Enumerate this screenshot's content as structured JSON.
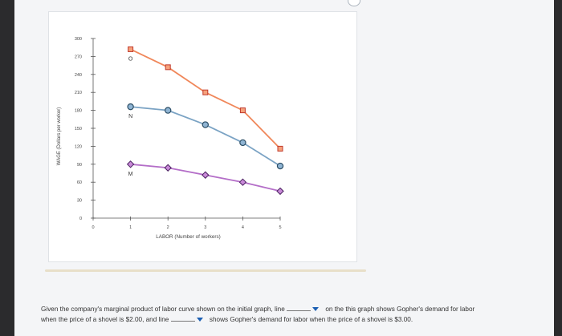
{
  "chart_data": {
    "type": "line",
    "ylabel": "WAGE (Dollars per worker)",
    "xlabel": "LABOR (Number of workers)",
    "x_ticks": [
      0,
      1,
      2,
      3,
      4,
      5
    ],
    "y_ticks": [
      0,
      30,
      60,
      90,
      120,
      150,
      180,
      210,
      240,
      270,
      300
    ],
    "xlim": [
      0,
      5
    ],
    "ylim": [
      0,
      300
    ],
    "series": [
      {
        "name": "O",
        "color": "#f0875a",
        "marker": "square",
        "x": [
          1,
          2,
          3,
          4,
          5
        ],
        "values": [
          282,
          252,
          210,
          180,
          116
        ]
      },
      {
        "name": "N",
        "color": "#7ba3c4",
        "marker": "circle",
        "x": [
          1,
          2,
          3,
          4,
          5
        ],
        "values": [
          186,
          180,
          156,
          126,
          87
        ]
      },
      {
        "name": "M",
        "color": "#b46ec8",
        "marker": "diamond",
        "x": [
          1,
          2,
          3,
          4,
          5
        ],
        "values": [
          90,
          84,
          72,
          60,
          45
        ]
      }
    ]
  },
  "question": {
    "part1": "Given the company's marginal product of labor curve shown on the initial graph, line",
    "part2": "on the this graph shows Gopher's demand for labor",
    "part3": "when the price of a shovel is $2.00, and line",
    "part4": "shows Gopher's demand for labor when the price of a shovel is $3.00."
  }
}
